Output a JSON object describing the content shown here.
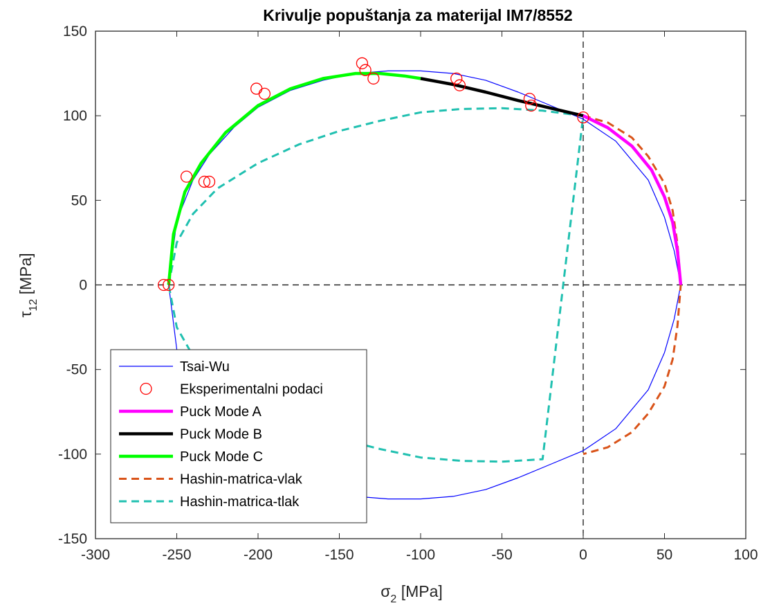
{
  "chart_data": {
    "type": "line",
    "title": "Krivulje popuštanja za materijal IM7/8552",
    "xlabel": {
      "symbol": "σ",
      "sub": "2",
      "unit": "[MPa]"
    },
    "ylabel": {
      "symbol": "τ",
      "sub": "12",
      "unit": "[MPa]"
    },
    "xlim": [
      -300,
      100
    ],
    "ylim": [
      -150,
      150
    ],
    "xticks": [
      -300,
      -250,
      -200,
      -150,
      -100,
      -50,
      0,
      50,
      100
    ],
    "yticks": [
      -150,
      -100,
      -50,
      0,
      50,
      100,
      150
    ],
    "xtick_labels": [
      "-300",
      "-250",
      "-200",
      "-150",
      "-100",
      "-50",
      "0",
      "50",
      "100"
    ],
    "ytick_labels": [
      "-150",
      "-100",
      "-50",
      "0",
      "50",
      "100",
      "150"
    ],
    "grid": false,
    "reference_lines": {
      "x": 0,
      "y": 0,
      "style": "dashed",
      "color": "#000000"
    },
    "legend_position": "bottom-left",
    "series": [
      {
        "name": "Tsai-Wu",
        "style": "solid",
        "color": "#0000ff",
        "width": "thin",
        "x": [
          -255,
          -250,
          -240,
          -230,
          -215,
          -200,
          -180,
          -160,
          -140,
          -120,
          -100,
          -80,
          -60,
          -40,
          -20,
          0,
          20,
          40,
          50,
          56,
          60,
          56,
          50,
          40,
          20,
          0,
          -20,
          -40,
          -60,
          -80,
          -100,
          -120,
          -140,
          -160,
          -180,
          -200,
          -215,
          -230,
          -240,
          -250,
          -255
        ],
        "y": [
          0,
          38,
          62,
          77,
          93,
          105,
          115,
          121,
          125,
          126.5,
          126.5,
          125,
          121,
          114,
          106,
          98,
          85,
          62,
          40,
          20,
          0,
          -20,
          -40,
          -62,
          -85,
          -98,
          -106,
          -114,
          -121,
          -125,
          -126.5,
          -126.5,
          -125,
          -121,
          -115,
          -105,
          -93,
          -77,
          -62,
          -38,
          0
        ]
      },
      {
        "name": "Eksperimentalni podaci",
        "style": "markers",
        "marker": "circle-open",
        "color": "#ff0000",
        "x": [
          -258,
          -255,
          -244,
          -233,
          -230,
          -201,
          -196,
          -136,
          -134,
          -129,
          -78,
          -76,
          -33,
          -32,
          0
        ],
        "y": [
          0,
          0,
          64,
          61,
          61,
          116,
          113,
          131,
          127,
          122,
          122,
          118,
          110,
          106,
          99
        ]
      },
      {
        "name": "Puck Mode A",
        "style": "solid",
        "color": "#ff00ff",
        "width": "thick",
        "x": [
          0,
          15,
          30,
          42,
          50,
          55,
          58,
          60
        ],
        "y": [
          100,
          93,
          82,
          68,
          52,
          37,
          20,
          0
        ]
      },
      {
        "name": "Puck Mode B",
        "style": "solid",
        "color": "#000000",
        "width": "thick",
        "x": [
          -100,
          -80,
          -60,
          -40,
          -20,
          0
        ],
        "y": [
          122,
          118.5,
          114,
          109,
          104.5,
          100
        ]
      },
      {
        "name": "Puck Mode C",
        "style": "solid",
        "color": "#00ff00",
        "width": "thick",
        "x": [
          -255,
          -252,
          -245,
          -235,
          -220,
          -200,
          -180,
          -160,
          -140,
          -125,
          -110,
          -100
        ],
        "y": [
          0,
          30,
          55,
          72,
          90,
          106,
          116,
          122,
          125,
          125,
          123.5,
          122
        ]
      },
      {
        "name": "Hashin-matrica-vlak",
        "style": "dashed",
        "color": "#d95319",
        "width": "medium",
        "x": [
          0,
          15,
          30,
          40,
          50,
          55,
          58,
          60,
          58,
          55,
          50,
          40,
          30,
          15,
          0
        ],
        "y": [
          100,
          96,
          87,
          76,
          60,
          44,
          24,
          0,
          -24,
          -44,
          -60,
          -76,
          -87,
          -96,
          -100
        ]
      },
      {
        "name": "Hashin-matrica-tlak",
        "style": "dashed",
        "color": "#20c0b0",
        "width": "medium",
        "x": [
          -255,
          -250,
          -240,
          -225,
          -200,
          -175,
          -150,
          -125,
          -100,
          -75,
          -50,
          -25,
          0,
          -25,
          -50,
          -75,
          -100,
          -125,
          -150,
          -175,
          -200,
          -225,
          -240,
          -250,
          -255
        ],
        "y": [
          0,
          25,
          42,
          57,
          72,
          83,
          91,
          97,
          102,
          104,
          104.5,
          103,
          100,
          -103,
          -104.5,
          -104,
          -102,
          -97,
          -91,
          -83,
          -72,
          -57,
          -42,
          -25,
          0
        ]
      }
    ]
  }
}
